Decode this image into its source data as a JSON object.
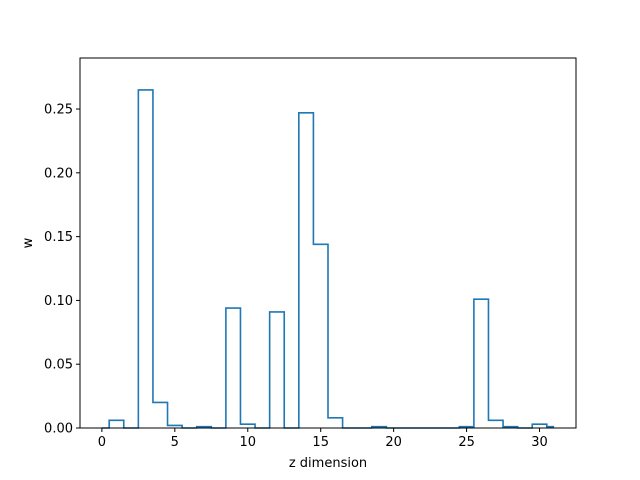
{
  "chart_data": {
    "type": "line",
    "drawstyle": "steps-mid",
    "xlabel": "z dimension",
    "ylabel": "w",
    "xlim": [
      -1.5,
      32.5
    ],
    "ylim": [
      0,
      0.29
    ],
    "xticks": [
      0,
      5,
      10,
      15,
      20,
      25,
      30
    ],
    "xtick_labels": [
      "0",
      "5",
      "10",
      "15",
      "20",
      "25",
      "30"
    ],
    "yticks": [
      0,
      0.05,
      0.1,
      0.15,
      0.2,
      0.25
    ],
    "ytick_labels": [
      "0.00",
      "0.05",
      "0.10",
      "0.15",
      "0.20",
      "0.25"
    ],
    "color": "#1f77b4",
    "grid": false,
    "series": [
      {
        "x": [
          0,
          1,
          2,
          3,
          4,
          5,
          6,
          7,
          8,
          9,
          10,
          11,
          12,
          13,
          14,
          15,
          16,
          17,
          18,
          19,
          20,
          21,
          22,
          23,
          24,
          25,
          26,
          27,
          28,
          29,
          30,
          31
        ],
        "values": [
          0.0,
          0.006,
          0.0,
          0.265,
          0.02,
          0.002,
          0.0,
          0.001,
          0.0,
          0.094,
          0.003,
          0.0,
          0.091,
          0.0,
          0.247,
          0.144,
          0.008,
          0.0,
          0.0,
          0.001,
          0.0,
          0.0,
          0.0,
          0.0,
          0.0,
          0.001,
          0.101,
          0.006,
          0.001,
          0.0,
          0.003,
          0.001
        ]
      }
    ]
  }
}
